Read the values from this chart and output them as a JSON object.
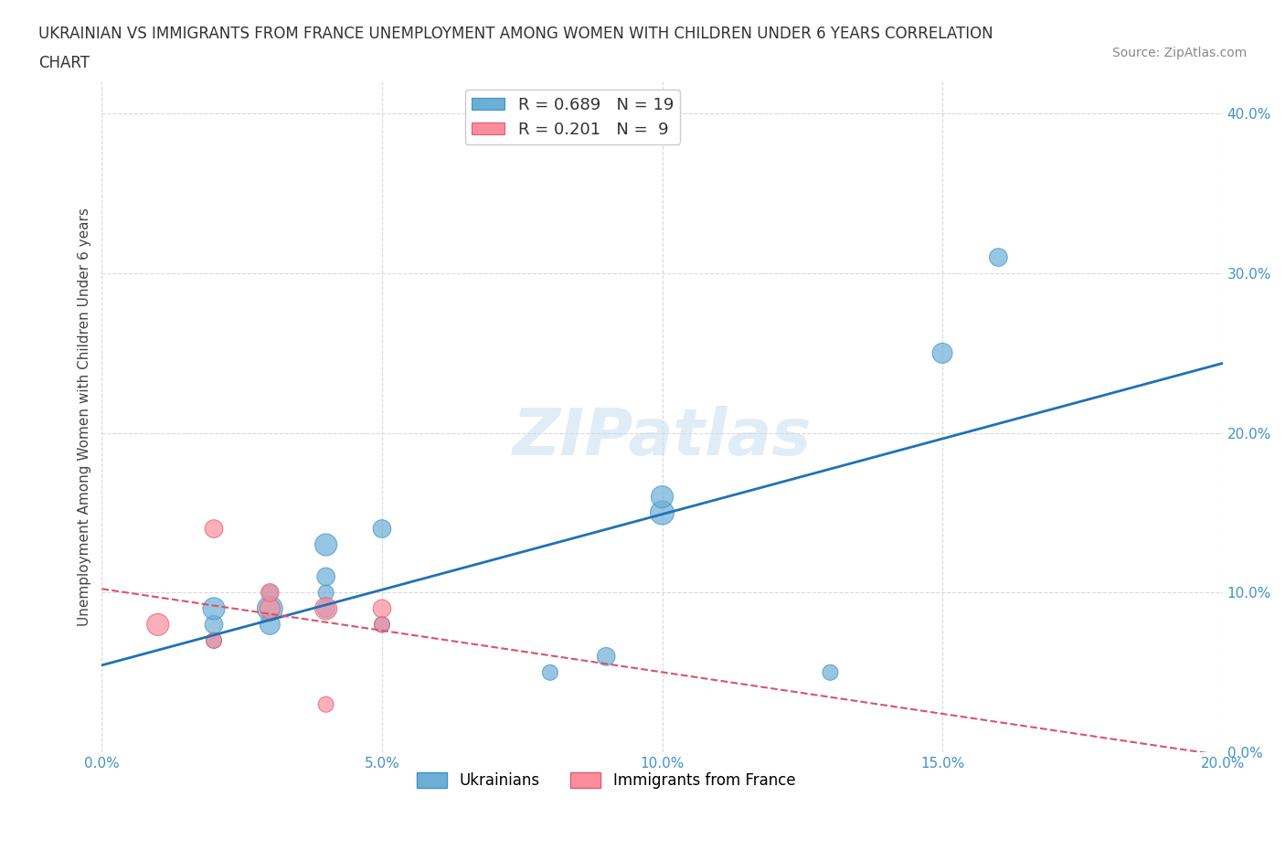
{
  "title_line1": "UKRAINIAN VS IMMIGRANTS FROM FRANCE UNEMPLOYMENT AMONG WOMEN WITH CHILDREN UNDER 6 YEARS CORRELATION",
  "title_line2": "CHART",
  "source": "Source: ZipAtlas.com",
  "ylabel": "Unemployment Among Women with Children Under 6 years",
  "watermark": "ZIPatlas",
  "blue_R": 0.689,
  "blue_N": 19,
  "pink_R": 0.201,
  "pink_N": 9,
  "blue_label": "Ukrainians",
  "pink_label": "Immigrants from France",
  "xlim": [
    0.0,
    0.2
  ],
  "ylim": [
    0.0,
    0.42
  ],
  "x_ticks": [
    0.0,
    0.05,
    0.1,
    0.15,
    0.2
  ],
  "y_ticks": [
    0.0,
    0.1,
    0.2,
    0.3,
    0.4
  ],
  "blue_color": "#6baed6",
  "blue_edge": "#4292c6",
  "pink_color": "#fc8d9c",
  "pink_edge": "#e05a70",
  "blue_line_color": "#2171b5",
  "pink_line_color": "#d9536a",
  "grid_color": "#d0d0d0",
  "background": "#ffffff",
  "blue_points_x": [
    0.02,
    0.02,
    0.02,
    0.03,
    0.03,
    0.03,
    0.04,
    0.04,
    0.04,
    0.04,
    0.05,
    0.05,
    0.08,
    0.09,
    0.1,
    0.1,
    0.13,
    0.15,
    0.16
  ],
  "blue_points_y": [
    0.08,
    0.09,
    0.07,
    0.09,
    0.08,
    0.1,
    0.09,
    0.1,
    0.11,
    0.13,
    0.08,
    0.14,
    0.05,
    0.06,
    0.15,
    0.16,
    0.05,
    0.25,
    0.31
  ],
  "blue_sizes": [
    200,
    300,
    150,
    400,
    250,
    150,
    200,
    150,
    200,
    300,
    150,
    200,
    150,
    200,
    350,
    300,
    150,
    250,
    200
  ],
  "pink_points_x": [
    0.01,
    0.02,
    0.02,
    0.03,
    0.03,
    0.04,
    0.04,
    0.05,
    0.05
  ],
  "pink_points_y": [
    0.08,
    0.07,
    0.14,
    0.09,
    0.1,
    0.09,
    0.03,
    0.09,
    0.08
  ],
  "pink_sizes": [
    300,
    150,
    200,
    250,
    200,
    300,
    150,
    200,
    150
  ]
}
